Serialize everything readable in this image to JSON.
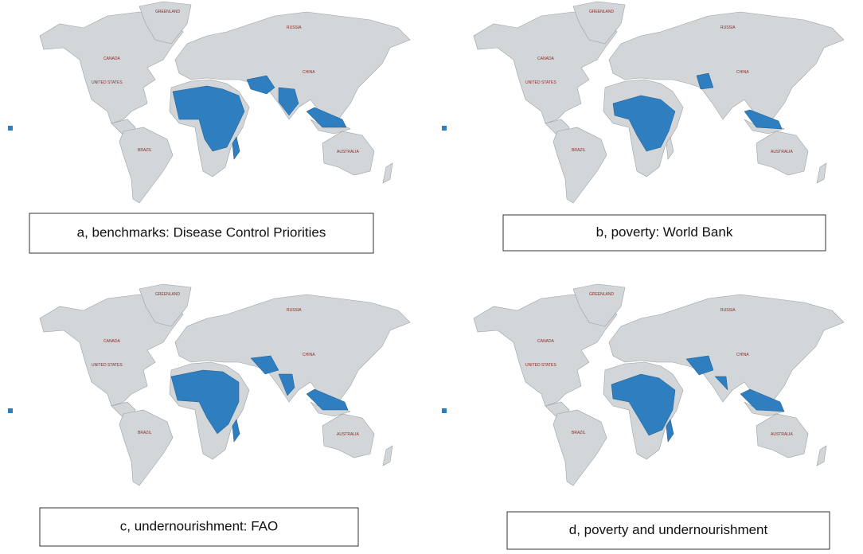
{
  "panels": [
    {
      "caption": "a, benchmarks: Disease Control Priorities",
      "labels": [
        "GREENLAND",
        "CANADA",
        "UNITED STATES",
        "RUSSIA",
        "CHINA",
        "BRAZIL",
        "AUSTRALIA"
      ]
    },
    {
      "caption": "b, poverty: World Bank",
      "labels": [
        "GREENLAND",
        "CANADA",
        "UNITED STATES",
        "RUSSIA",
        "CHINA",
        "BRAZIL",
        "AUSTRALIA"
      ]
    },
    {
      "caption": "c, undernourishment: FAO",
      "labels": [
        "GREENLAND",
        "CANADA",
        "UNITED STATES",
        "RUSSIA",
        "CHINA",
        "BRAZIL",
        "AUSTRALIA"
      ]
    },
    {
      "caption": "d, poverty and undernourishment",
      "labels": [
        "GREENLAND",
        "CANADA",
        "UNITED STATES",
        "RUSSIA",
        "CHINA",
        "BRAZIL",
        "AUSTRALIA"
      ]
    }
  ]
}
